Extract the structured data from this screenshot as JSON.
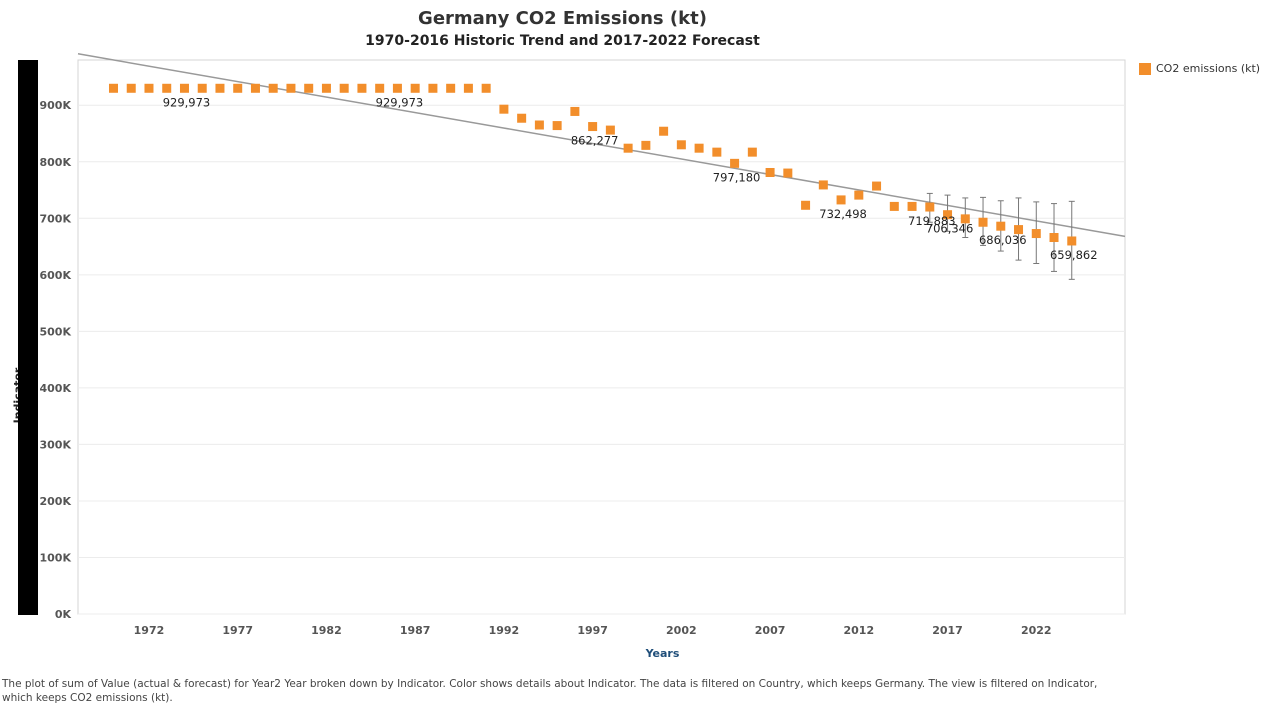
{
  "chart_data": {
    "type": "scatter",
    "title": "Germany CO2 Emissions (kt)",
    "subtitle": "1970-2016 Historic Trend and 2017-2022 Forecast",
    "xlabel": "Years",
    "row_header_outer": "Indicator",
    "row_header_inner": "CO2 emissions (kt)",
    "xlim": [
      1968,
      2027
    ],
    "ylim": [
      0,
      980000
    ],
    "x_ticks": [
      1972,
      1977,
      1982,
      1987,
      1992,
      1997,
      2002,
      2007,
      2012,
      2017,
      2022
    ],
    "y_ticks": [
      {
        "value": 0,
        "label": "0K"
      },
      {
        "value": 100000,
        "label": "100K"
      },
      {
        "value": 200000,
        "label": "200K"
      },
      {
        "value": 300000,
        "label": "300K"
      },
      {
        "value": 400000,
        "label": "400K"
      },
      {
        "value": 500000,
        "label": "500K"
      },
      {
        "value": 600000,
        "label": "600K"
      },
      {
        "value": 700000,
        "label": "700K"
      },
      {
        "value": 800000,
        "label": "800K"
      },
      {
        "value": 900000,
        "label": "900K"
      }
    ],
    "grid": true,
    "legend_position": "top-right",
    "series": [
      {
        "name": "CO2 emissions (kt)",
        "color": "#f28e2b",
        "points": [
          {
            "x": 1970,
            "y": 929973
          },
          {
            "x": 1971,
            "y": 929973
          },
          {
            "x": 1972,
            "y": 929973
          },
          {
            "x": 1973,
            "y": 929973
          },
          {
            "x": 1974,
            "y": 929973
          },
          {
            "x": 1975,
            "y": 929973
          },
          {
            "x": 1976,
            "y": 929973
          },
          {
            "x": 1977,
            "y": 929973
          },
          {
            "x": 1978,
            "y": 929973
          },
          {
            "x": 1979,
            "y": 929973
          },
          {
            "x": 1980,
            "y": 929973
          },
          {
            "x": 1981,
            "y": 929973
          },
          {
            "x": 1982,
            "y": 929973
          },
          {
            "x": 1983,
            "y": 929973
          },
          {
            "x": 1984,
            "y": 929973
          },
          {
            "x": 1985,
            "y": 929973
          },
          {
            "x": 1986,
            "y": 929973
          },
          {
            "x": 1987,
            "y": 929973
          },
          {
            "x": 1988,
            "y": 929973
          },
          {
            "x": 1989,
            "y": 929973
          },
          {
            "x": 1990,
            "y": 929973
          },
          {
            "x": 1991,
            "y": 929973
          },
          {
            "x": 1992,
            "y": 893000
          },
          {
            "x": 1993,
            "y": 877000
          },
          {
            "x": 1994,
            "y": 865000
          },
          {
            "x": 1995,
            "y": 864000
          },
          {
            "x": 1996,
            "y": 889000
          },
          {
            "x": 1997,
            "y": 862277
          },
          {
            "x": 1998,
            "y": 856000
          },
          {
            "x": 1999,
            "y": 824000
          },
          {
            "x": 2000,
            "y": 829000
          },
          {
            "x": 2001,
            "y": 854000
          },
          {
            "x": 2002,
            "y": 830000
          },
          {
            "x": 2003,
            "y": 824000
          },
          {
            "x": 2004,
            "y": 817000
          },
          {
            "x": 2005,
            "y": 797180
          },
          {
            "x": 2006,
            "y": 817000
          },
          {
            "x": 2007,
            "y": 781000
          },
          {
            "x": 2008,
            "y": 780000
          },
          {
            "x": 2009,
            "y": 723000
          },
          {
            "x": 2010,
            "y": 759000
          },
          {
            "x": 2011,
            "y": 732498
          },
          {
            "x": 2012,
            "y": 741000
          },
          {
            "x": 2013,
            "y": 757000
          },
          {
            "x": 2014,
            "y": 721000
          },
          {
            "x": 2015,
            "y": 721000
          },
          {
            "x": 2016,
            "y": 719883
          },
          {
            "x": 2017,
            "y": 706346
          },
          {
            "x": 2018,
            "y": 699000
          },
          {
            "x": 2019,
            "y": 693000
          },
          {
            "x": 2020,
            "y": 686036
          },
          {
            "x": 2021,
            "y": 680000
          },
          {
            "x": 2022,
            "y": 673000
          },
          {
            "x": 2023,
            "y": 666000
          },
          {
            "x": 2024,
            "y": 659862
          }
        ]
      }
    ],
    "forecast_intervals": [
      {
        "x": 2016,
        "low": 693000,
        "high": 744000
      },
      {
        "x": 2017,
        "low": 677000,
        "high": 741000
      },
      {
        "x": 2018,
        "low": 666000,
        "high": 736000
      },
      {
        "x": 2019,
        "low": 652000,
        "high": 737000
      },
      {
        "x": 2020,
        "low": 642000,
        "high": 731000
      },
      {
        "x": 2021,
        "low": 626000,
        "high": 736000
      },
      {
        "x": 2022,
        "low": 620000,
        "high": 729000
      },
      {
        "x": 2023,
        "low": 606000,
        "high": 726000
      },
      {
        "x": 2024,
        "low": 592000,
        "high": 730000
      }
    ],
    "trend_line": {
      "color": "#999999",
      "x1": 1968,
      "y1": 991000,
      "x2": 2027,
      "y2": 668000
    },
    "data_labels": [
      {
        "x": 1974,
        "y": 929973,
        "text": "929,973"
      },
      {
        "x": 1986,
        "y": 929973,
        "text": "929,973"
      },
      {
        "x": 1997,
        "y": 862277,
        "text": "862,277"
      },
      {
        "x": 2005,
        "y": 797180,
        "text": "797,180"
      },
      {
        "x": 2011,
        "y": 732498,
        "text": "732,498"
      },
      {
        "x": 2016,
        "y": 719883,
        "text": "719,883"
      },
      {
        "x": 2017,
        "y": 706346,
        "text": "706,346"
      },
      {
        "x": 2020,
        "y": 686036,
        "text": "686,036"
      },
      {
        "x": 2024,
        "y": 659862,
        "text": "659,862"
      }
    ]
  },
  "legend": {
    "label": "CO2 emissions (kt)",
    "color": "#f28e2b"
  },
  "caption": "The plot of sum of Value (actual & forecast)  for Year2 Year broken down by Indicator.  Color shows details about Indicator. The data is filtered on Country, which keeps Germany. The view is filtered on Indicator, which keeps CO2 emissions (kt)."
}
